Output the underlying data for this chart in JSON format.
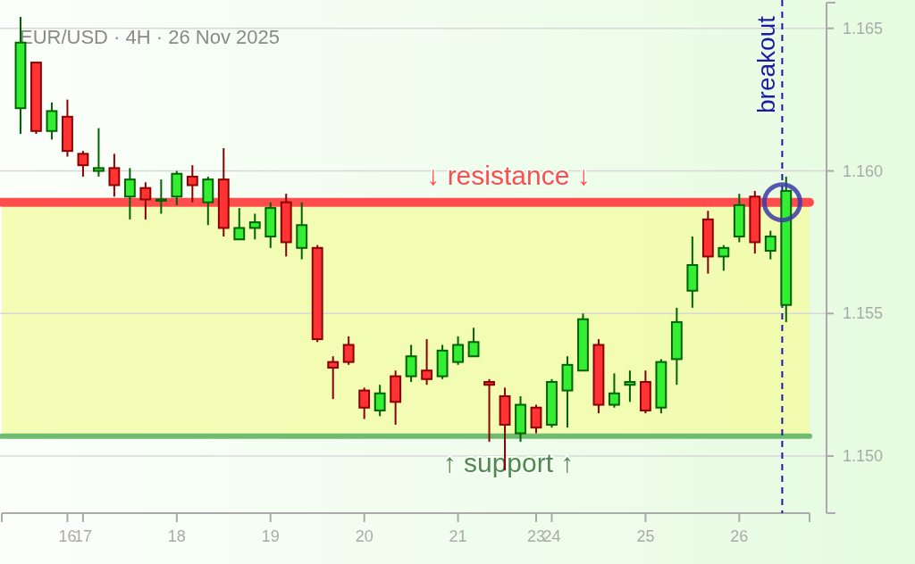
{
  "chart_data": {
    "type": "candlestick",
    "title": "EUR/USD · 4H · 26 Nov 2025",
    "categories": [
      null,
      null,
      null,
      "16",
      "17",
      null,
      null,
      null,
      null,
      null,
      "18",
      null,
      null,
      null,
      null,
      null,
      "19",
      null,
      null,
      null,
      null,
      null,
      "20",
      null,
      null,
      null,
      null,
      null,
      "21",
      null,
      null,
      null,
      null,
      "23",
      "24",
      null,
      null,
      null,
      null,
      null,
      "25",
      null,
      null,
      null,
      null,
      null,
      "26",
      null,
      null,
      null
    ],
    "ohlc": [
      [
        1.1622,
        1.1654,
        1.1613,
        1.1645
      ],
      [
        1.1638,
        1.1638,
        1.1613,
        1.1614
      ],
      [
        1.1614,
        1.1624,
        1.1611,
        1.1621
      ],
      [
        1.1619,
        1.1625,
        1.1605,
        1.1607
      ],
      [
        1.1606,
        1.1607,
        1.1598,
        1.1602
      ],
      [
        1.16,
        1.1615,
        1.1598,
        1.1601
      ],
      [
        1.1601,
        1.1606,
        1.1591,
        1.1595
      ],
      [
        1.1591,
        1.1601,
        1.1583,
        1.1597
      ],
      [
        1.1594,
        1.1596,
        1.1583,
        1.159
      ],
      [
        1.159,
        1.1597,
        1.1585,
        1.159
      ],
      [
        1.1591,
        1.16,
        1.1588,
        1.1599
      ],
      [
        1.1598,
        1.1602,
        1.1589,
        1.1595
      ],
      [
        1.1589,
        1.1598,
        1.1581,
        1.1597
      ],
      [
        1.1597,
        1.1608,
        1.1577,
        1.158
      ],
      [
        1.1576,
        1.1587,
        1.1576,
        1.158
      ],
      [
        1.158,
        1.1585,
        1.1576,
        1.1582
      ],
      [
        1.1577,
        1.1589,
        1.1573,
        1.1587
      ],
      [
        1.1589,
        1.1592,
        1.157,
        1.1575
      ],
      [
        1.1573,
        1.1589,
        1.1569,
        1.1581
      ],
      [
        1.1573,
        1.1574,
        1.154,
        1.1541
      ],
      [
        1.1533,
        1.1535,
        1.152,
        1.1531
      ],
      [
        1.1539,
        1.1542,
        1.1532,
        1.1533
      ],
      [
        1.1523,
        1.1524,
        1.1513,
        1.1517
      ],
      [
        1.1516,
        1.1525,
        1.1514,
        1.1522
      ],
      [
        1.1528,
        1.153,
        1.1511,
        1.1519
      ],
      [
        1.1528,
        1.1539,
        1.1526,
        1.1535
      ],
      [
        1.153,
        1.1541,
        1.1525,
        1.1527
      ],
      [
        1.1528,
        1.1539,
        1.1527,
        1.1537
      ],
      [
        1.1533,
        1.1542,
        1.1532,
        1.1539
      ],
      [
        1.1535,
        1.1545,
        1.1535,
        1.154
      ],
      [
        1.1526,
        1.1527,
        1.1505,
        1.1525
      ],
      [
        1.1521,
        1.1524,
        1.1495,
        1.1511
      ],
      [
        1.1508,
        1.1521,
        1.1505,
        1.1518
      ],
      [
        1.1517,
        1.1518,
        1.1508,
        1.151
      ],
      [
        1.1511,
        1.1527,
        1.151,
        1.1526
      ],
      [
        1.1523,
        1.1535,
        1.151,
        1.1532
      ],
      [
        1.153,
        1.155,
        1.153,
        1.1548
      ],
      [
        1.1539,
        1.1541,
        1.1515,
        1.1518
      ],
      [
        1.1518,
        1.1529,
        1.1517,
        1.1522
      ],
      [
        1.1525,
        1.153,
        1.1519,
        1.1526
      ],
      [
        1.1526,
        1.153,
        1.1515,
        1.1516
      ],
      [
        1.1517,
        1.1534,
        1.1515,
        1.1533
      ],
      [
        1.1534,
        1.1552,
        1.1525,
        1.1547
      ],
      [
        1.1558,
        1.1577,
        1.1552,
        1.1567
      ],
      [
        1.1583,
        1.1586,
        1.1564,
        1.157
      ],
      [
        1.157,
        1.1574,
        1.1565,
        1.1573
      ],
      [
        1.1577,
        1.1592,
        1.1575,
        1.1588
      ],
      [
        1.1591,
        1.1593,
        1.1571,
        1.1575
      ],
      [
        1.1572,
        1.1579,
        1.1569,
        1.1577
      ],
      [
        1.1553,
        1.1598,
        1.1547,
        1.1593
      ]
    ],
    "ylim": [
      1.148,
      1.1659
    ],
    "yticks": [
      {
        "value": 1.15,
        "label": "1.150"
      },
      1.155,
      {
        "value": 1.16,
        "label": "1.160"
      },
      1.165
    ],
    "grid": "y",
    "ref_lines": [
      {
        "axis": "y",
        "value": 1.1589,
        "label": "↓ resistance ↓",
        "color": "#ff4d4d",
        "line_style": "solid"
      },
      {
        "axis": "y",
        "value": 1.1507,
        "label": "↑ support ↑",
        "color": "#6fbb6f",
        "line_style": "solid"
      }
    ],
    "annotations": [
      "breakout"
    ],
    "bands": [
      {
        "axis": "y",
        "from": 1.1507,
        "to": 1.1589,
        "color": "#f2fba8"
      }
    ]
  }
}
